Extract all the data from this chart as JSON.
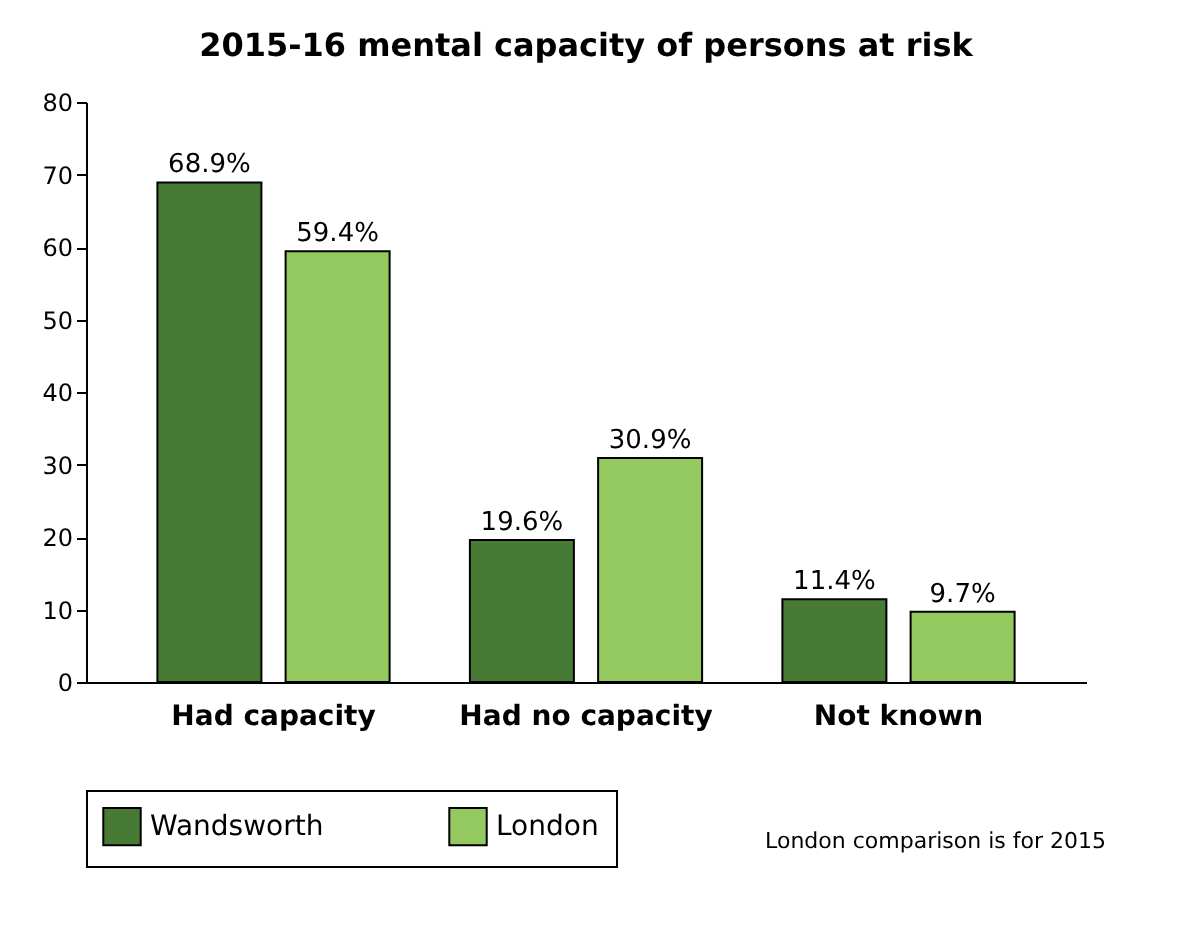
{
  "chart_data": {
    "type": "bar",
    "title": "2015-16 mental capacity of persons at risk",
    "categories": [
      "Had capacity",
      "Had no capacity",
      "Not known"
    ],
    "series": [
      {
        "name": "Wandsworth",
        "color": "#477a35",
        "values": [
          68.9,
          19.6,
          11.4
        ],
        "value_labels": [
          "68.9%",
          "19.6%",
          "11.4%"
        ]
      },
      {
        "name": "London",
        "color": "#93c95f",
        "values": [
          59.4,
          30.9,
          9.7
        ],
        "value_labels": [
          "59.4%",
          "30.9%",
          "9.7%"
        ]
      }
    ],
    "ylim": [
      0,
      80
    ],
    "yticks": [
      0,
      10,
      20,
      30,
      40,
      50,
      60,
      70,
      80
    ],
    "grid": false,
    "legend": "bottom",
    "annotations": [
      "London comparison is for 2015"
    ]
  }
}
